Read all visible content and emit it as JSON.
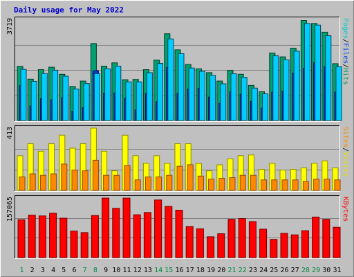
{
  "chart_data": {
    "title": "Daily usage for May 2022",
    "type": "bar",
    "x": [
      "1",
      "2",
      "3",
      "4",
      "5",
      "6",
      "7",
      "8",
      "9",
      "10",
      "11",
      "12",
      "13",
      "14",
      "15",
      "16",
      "17",
      "18",
      "19",
      "20",
      "21",
      "22",
      "23",
      "24",
      "25",
      "26",
      "27",
      "28",
      "29",
      "30",
      "31"
    ],
    "weekend": [
      1,
      7,
      8,
      14,
      15,
      21,
      22,
      28,
      29
    ],
    "panels": [
      {
        "ymax": 3719,
        "ymax_label": "3719",
        "legend": [
          {
            "text": "Pages",
            "color": "#00cccc"
          },
          {
            "text": "/",
            "color": "#000000"
          },
          {
            "text": "Files",
            "color": "#0044ee"
          },
          {
            "text": "/",
            "color": "#000000"
          },
          {
            "text": "Hits",
            "color": "#009966"
          }
        ],
        "series": [
          {
            "name": "Hits",
            "color": "#00a070",
            "values": [
              1990,
              1520,
              1870,
              1960,
              1700,
              1250,
              1450,
              2830,
              2000,
              2120,
              1500,
              1510,
              1870,
              2220,
              3190,
              2600,
              2060,
              1900,
              1760,
              1450,
              1840,
              1700,
              1290,
              1060,
              2480,
              2340,
              2660,
              3680,
              3570,
              3250,
              2090
            ]
          },
          {
            "name": "Files",
            "color": "#0033dd",
            "values": [
              1280,
              530,
              800,
              760,
              840,
              340,
              470,
              1830,
              1010,
              1010,
              820,
              390,
              1000,
              690,
              1950,
              990,
              1160,
              1180,
              860,
              630,
              1050,
              970,
              700,
              450,
              1040,
              1080,
              1740,
              1920,
              2130,
              1980,
              1050
            ]
          },
          {
            "name": "Pages",
            "color": "#00ccff",
            "values": [
              1880,
              1440,
              1730,
              1850,
              1630,
              1160,
              1360,
              1720,
              1900,
              2000,
              1420,
              1420,
              1760,
              2100,
              3000,
              2460,
              1930,
              1810,
              1660,
              1350,
              1720,
              1590,
              1190,
              980,
              2380,
              2230,
              2550,
              3570,
              3510,
              3120,
              1980
            ]
          }
        ]
      },
      {
        "ymax": 413,
        "ymax_label": "413",
        "legend": [
          {
            "text": "Sites",
            "color": "#ff8800"
          },
          {
            "text": "/",
            "color": "#000000"
          },
          {
            "text": "Visits",
            "color": "#e0e000"
          }
        ],
        "series": [
          {
            "name": "Visits",
            "color": "#ffff00",
            "values": [
              230,
              310,
              260,
              310,
              366,
              280,
              310,
              413,
              260,
              130,
              366,
              230,
              180,
              230,
              180,
              310,
              310,
              180,
              130,
              170,
              210,
              230,
              235,
              140,
              180,
              135,
              140,
              150,
              180,
              196,
              150
            ]
          },
          {
            "name": "Sites",
            "color": "#ff8800",
            "values": [
              90,
              110,
              100,
              110,
              175,
              135,
              130,
              200,
              100,
              100,
              166,
              70,
              90,
              90,
              100,
              160,
              170,
              95,
              75,
              80,
              85,
              100,
              100,
              70,
              70,
              70,
              70,
              60,
              75,
              75,
              70
            ]
          }
        ]
      },
      {
        "ymax": 157065,
        "ymax_label": "157065",
        "legend": [
          {
            "text": "KBytes",
            "color": "#ff0000"
          }
        ],
        "series": [
          {
            "name": "KBytes",
            "color": "#ff0000",
            "values": [
              100000,
              112000,
              110000,
              117000,
              104000,
              70000,
              66000,
              111000,
              157000,
              130000,
              157000,
              113000,
              119000,
              152000,
              135000,
              125000,
              82000,
              76000,
              55000,
              63000,
              101000,
              103000,
              95000,
              75000,
              48000,
              64000,
              60000,
              71000,
              107000,
              101000,
              80000
            ]
          }
        ]
      }
    ]
  }
}
